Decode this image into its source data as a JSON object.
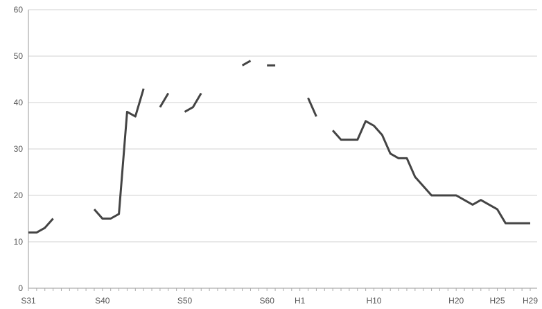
{
  "chart_data": {
    "type": "line",
    "title": "",
    "xlabel": "",
    "ylabel": "",
    "ylim": [
      0,
      60
    ],
    "yticks": [
      0,
      10,
      20,
      30,
      40,
      50,
      60
    ],
    "grid": true,
    "legend": "none",
    "line_color": "#444444",
    "grid_color": "#d0d0d0",
    "x_tick_labels": [
      {
        "label": "S31",
        "year": 1956
      },
      {
        "label": "S40",
        "year": 1965
      },
      {
        "label": "S50",
        "year": 1975
      },
      {
        "label": "S60",
        "year": 1985
      },
      {
        "label": "H1",
        "year": 1989
      },
      {
        "label": "H10",
        "year": 1998
      },
      {
        "label": "H20",
        "year": 2008
      },
      {
        "label": "H25",
        "year": 2013
      },
      {
        "label": "H29",
        "year": 2017
      }
    ],
    "xlim": [
      1956,
      2017
    ],
    "series": [
      {
        "values": [
          [
            1956,
            12
          ],
          [
            1957,
            12
          ],
          [
            1958,
            13
          ],
          [
            1959,
            15
          ],
          [
            1960,
            null
          ],
          [
            1964,
            17
          ],
          [
            1965,
            15
          ],
          [
            1966,
            15
          ],
          [
            1967,
            16
          ],
          [
            1968,
            38
          ],
          [
            1969,
            37
          ],
          [
            1970,
            43
          ],
          [
            1971,
            null
          ],
          [
            1972,
            39
          ],
          [
            1973,
            42
          ],
          [
            1974,
            null
          ],
          [
            1975,
            38
          ],
          [
            1976,
            39
          ],
          [
            1977,
            42
          ],
          [
            1978,
            null
          ],
          [
            1982,
            48
          ],
          [
            1983,
            49
          ],
          [
            1984,
            null
          ],
          [
            1985,
            48
          ],
          [
            1986,
            48
          ],
          [
            1987,
            null
          ],
          [
            1990,
            41
          ],
          [
            1991,
            37
          ],
          [
            1992,
            null
          ],
          [
            1993,
            34
          ],
          [
            1994,
            32
          ],
          [
            1995,
            32
          ],
          [
            1996,
            32
          ],
          [
            1997,
            36
          ],
          [
            1998,
            35
          ],
          [
            1999,
            33
          ],
          [
            2000,
            29
          ],
          [
            2001,
            28
          ],
          [
            2002,
            28
          ],
          [
            2003,
            24
          ],
          [
            2004,
            22
          ],
          [
            2005,
            20
          ],
          [
            2006,
            20
          ],
          [
            2007,
            20
          ],
          [
            2008,
            20
          ],
          [
            2009,
            19
          ],
          [
            2010,
            18
          ],
          [
            2011,
            19
          ],
          [
            2012,
            18
          ],
          [
            2013,
            17
          ],
          [
            2014,
            14
          ],
          [
            2015,
            14
          ],
          [
            2016,
            14
          ],
          [
            2017,
            14
          ]
        ]
      }
    ]
  }
}
